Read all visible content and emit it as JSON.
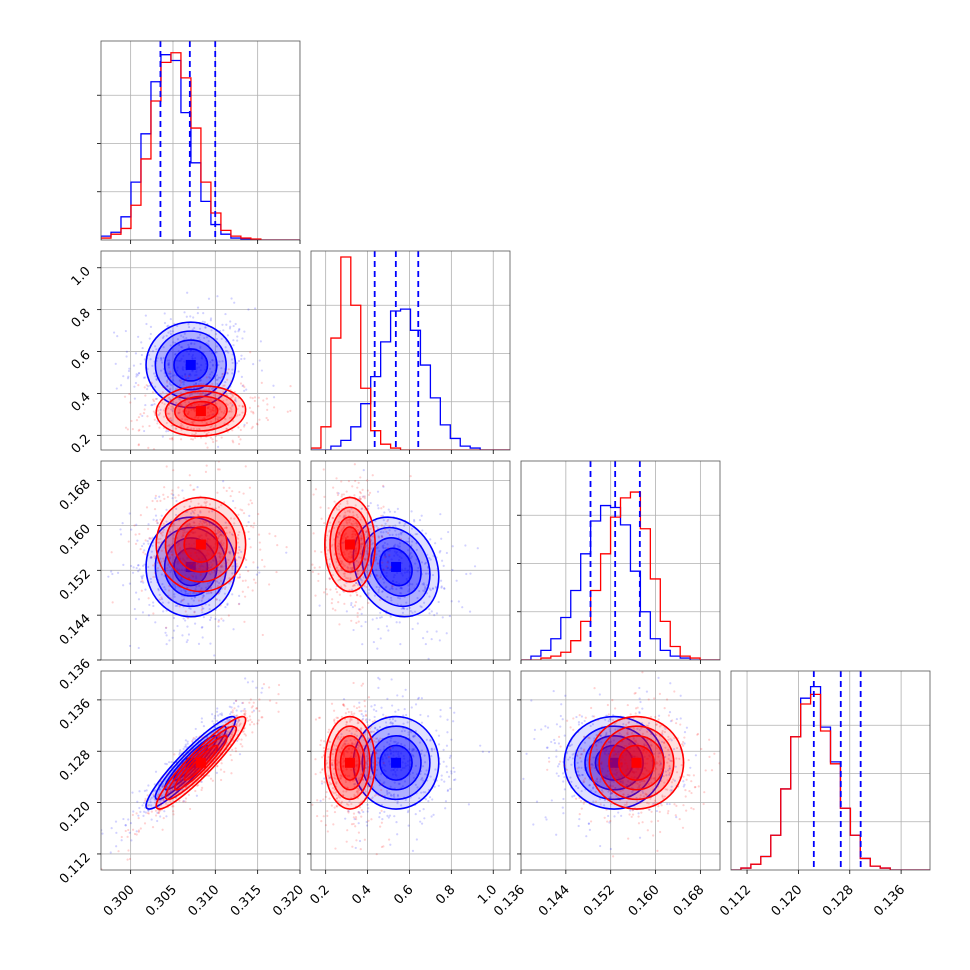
{
  "chart_data": {
    "type": "corner",
    "title": "",
    "grid": true,
    "colors": {
      "series_a": "#0000ff",
      "series_b": "#ff0000"
    },
    "parameters": [
      {
        "index": 0,
        "range": [
          0.2965,
          0.32
        ],
        "ticks": [
          0.3,
          0.305,
          0.31,
          0.315,
          0.32
        ],
        "tick_labels": [
          "0.300",
          "0.305",
          "0.310",
          "0.315",
          "0.320"
        ]
      },
      {
        "index": 1,
        "range": [
          0.13,
          1.08
        ],
        "ticks": [
          0.2,
          0.4,
          0.6,
          0.8,
          1.0
        ],
        "tick_labels": [
          "0.2",
          "0.4",
          "0.6",
          "0.8",
          "1.0"
        ]
      },
      {
        "index": 2,
        "range": [
          0.136,
          0.1715
        ],
        "ticks": [
          0.136,
          0.144,
          0.152,
          0.16,
          0.168
        ],
        "tick_labels": [
          "0.136",
          "0.144",
          "0.152",
          "0.160",
          "0.168"
        ]
      },
      {
        "index": 3,
        "range": [
          0.1095,
          0.1405
        ],
        "ticks": [
          0.112,
          0.12,
          0.128,
          0.136
        ],
        "tick_labels": [
          "0.112",
          "0.120",
          "0.128",
          "0.136"
        ]
      }
    ],
    "quantile_lines": [
      [
        0.30352,
        0.30699,
        0.30999
      ],
      [
        0.434,
        0.535,
        0.642
      ],
      [
        0.1484,
        0.1528,
        0.1572
      ],
      [
        0.1224,
        0.1266,
        0.1297
      ]
    ],
    "series": [
      {
        "key": "series_a",
        "marginals": [
          {
            "edges_start": 0.2965,
            "bin_width": 0.00118,
            "counts": [
              0.02,
              0.04,
              0.12,
              0.3,
              0.55,
              0.82,
              0.96,
              0.93,
              0.66,
              0.4,
              0.2,
              0.08,
              0.03,
              0.01,
              0.005,
              0,
              0,
              0,
              0,
              0
            ]
          },
          {
            "edges_start": 0.13,
            "bin_width": 0.0475,
            "counts": [
              0,
              0,
              0.02,
              0.05,
              0.12,
              0.24,
              0.38,
              0.56,
              0.72,
              0.73,
              0.62,
              0.44,
              0.27,
              0.13,
              0.06,
              0.02,
              0.01,
              0,
              0,
              0
            ]
          },
          {
            "edges_start": 0.136,
            "bin_width": 0.001775,
            "counts": [
              0,
              0.02,
              0.05,
              0.11,
              0.22,
              0.36,
              0.55,
              0.72,
              0.8,
              0.79,
              0.7,
              0.46,
              0.25,
              0.11,
              0.05,
              0.02,
              0.01,
              0,
              0,
              0
            ]
          },
          {
            "edges_start": 0.1095,
            "bin_width": 0.00155,
            "counts": [
              0,
              0.01,
              0.03,
              0.07,
              0.18,
              0.42,
              0.69,
              0.89,
              0.95,
              0.74,
              0.56,
              0.32,
              0.18,
              0.06,
              0.02,
              0.01,
              0,
              0,
              0,
              0
            ]
          }
        ],
        "means": [
          0.3071,
          0.536,
          0.1526,
          0.1262
        ],
        "sigmas": [
          0.0022,
          0.085,
          0.0037,
          0.003
        ],
        "correlations": {
          "0-1": 0.0,
          "0-2": 0.0,
          "0-3": 0.93,
          "1-2": -0.2,
          "1-3": 0.0,
          "2-3": 0.0
        }
      },
      {
        "key": "series_b",
        "marginals": [
          {
            "edges_start": 0.2965,
            "bin_width": 0.00118,
            "counts": [
              0.01,
              0.03,
              0.06,
              0.18,
              0.42,
              0.72,
              0.92,
              0.97,
              0.84,
              0.58,
              0.3,
              0.14,
              0.05,
              0.02,
              0.01,
              0.005,
              0,
              0,
              0,
              0
            ]
          },
          {
            "edges_start": 0.13,
            "bin_width": 0.0475,
            "counts": [
              0.01,
              0.12,
              0.58,
              1.0,
              0.75,
              0.32,
              0.1,
              0.03,
              0.01,
              0,
              0,
              0,
              0,
              0,
              0,
              0,
              0,
              0,
              0,
              0
            ]
          },
          {
            "edges_start": 0.136,
            "bin_width": 0.001775,
            "counts": [
              0,
              0,
              0.01,
              0.02,
              0.04,
              0.1,
              0.2,
              0.36,
              0.55,
              0.74,
              0.84,
              0.87,
              0.68,
              0.42,
              0.2,
              0.07,
              0.02,
              0.01,
              0,
              0
            ]
          },
          {
            "edges_start": 0.1095,
            "bin_width": 0.00155,
            "counts": [
              0,
              0.01,
              0.03,
              0.07,
              0.18,
              0.42,
              0.69,
              0.86,
              0.91,
              0.72,
              0.55,
              0.32,
              0.18,
              0.06,
              0.02,
              0.01,
              0,
              0,
              0,
              0
            ]
          }
        ],
        "means": [
          0.3083,
          0.316,
          0.1566,
          0.1262
        ],
        "sigmas": [
          0.0022,
          0.05,
          0.0035,
          0.003
        ],
        "correlations": {
          "0-1": 0.05,
          "0-2": 0.0,
          "0-3": 0.93,
          "1-2": 0.0,
          "1-3": 0.0,
          "2-3": 0.0
        }
      }
    ]
  }
}
